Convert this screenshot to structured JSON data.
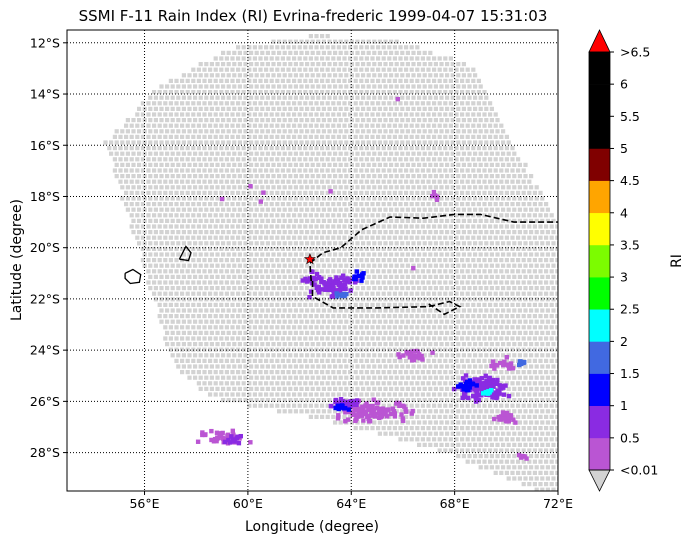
{
  "chart_data": {
    "type": "scatter",
    "subtype": "swath-map",
    "title": "SSMI F-11 Rain Index (RI) Evrina-frederic 1999-04-07 15:31:03",
    "xlabel": "Longitude (degree)",
    "ylabel": "Latitude (degree)",
    "xlim": [
      53,
      72
    ],
    "ylim": [
      -29.5,
      -11.5
    ],
    "x_ticks": [
      {
        "value": 56,
        "label": "56°E"
      },
      {
        "value": 60,
        "label": "60°E"
      },
      {
        "value": 64,
        "label": "64°E"
      },
      {
        "value": 68,
        "label": "68°E"
      },
      {
        "value": 72,
        "label": "72°E"
      }
    ],
    "y_ticks": [
      {
        "value": -12,
        "label": "12°S"
      },
      {
        "value": -14,
        "label": "14°S"
      },
      {
        "value": -16,
        "label": "16°S"
      },
      {
        "value": -18,
        "label": "18°S"
      },
      {
        "value": -20,
        "label": "20°S"
      },
      {
        "value": -22,
        "label": "22°S"
      },
      {
        "value": -24,
        "label": "24°S"
      },
      {
        "value": -26,
        "label": "26°S"
      },
      {
        "value": -28,
        "label": "28°S"
      }
    ],
    "grid": "dotted",
    "swath_polygon_lonlat": [
      [
        54.4,
        -15.8
      ],
      [
        56.5,
        -13.6
      ],
      [
        59.3,
        -12.1
      ],
      [
        62.5,
        -11.6
      ],
      [
        66,
        -11.9
      ],
      [
        68.6,
        -12.8
      ],
      [
        71.1,
        -17.5
      ],
      [
        72,
        -19.2
      ],
      [
        72,
        -29.5
      ],
      [
        71.2,
        -29.5
      ],
      [
        67.5,
        -27.9
      ],
      [
        63.1,
        -26.7
      ],
      [
        58.5,
        -25.8
      ],
      [
        57,
        -24.5
      ]
    ],
    "coastlines": [
      [
        [
          55.25,
          -21.0
        ],
        [
          55.55,
          -20.85
        ],
        [
          55.85,
          -21.05
        ],
        [
          55.8,
          -21.35
        ],
        [
          55.45,
          -21.4
        ],
        [
          55.25,
          -21.2
        ],
        [
          55.25,
          -21.0
        ]
      ],
      [
        [
          57.35,
          -20.45
        ],
        [
          57.6,
          -19.95
        ],
        [
          57.8,
          -20.2
        ],
        [
          57.7,
          -20.5
        ],
        [
          57.35,
          -20.45
        ]
      ]
    ],
    "storm_track": [
      [
        62.45,
        -21.3
      ],
      [
        62.4,
        -20.6
      ],
      [
        62.9,
        -20.2
      ],
      [
        63.6,
        -20.0
      ],
      [
        64.4,
        -19.3
      ],
      [
        65.5,
        -18.8
      ],
      [
        66.8,
        -18.85
      ],
      [
        68.0,
        -18.7
      ],
      [
        69.0,
        -18.7
      ],
      [
        70.3,
        -19.0
      ],
      [
        72,
        -19.0
      ]
    ],
    "storm_track_lower": [
      [
        62.5,
        -21.3
      ],
      [
        62.5,
        -21.9
      ],
      [
        63.3,
        -22.35
      ],
      [
        65.0,
        -22.35
      ],
      [
        67.0,
        -22.3
      ],
      [
        67.8,
        -22.1
      ],
      [
        68.2,
        -22.3
      ],
      [
        67.6,
        -22.6
      ],
      [
        67.0,
        -22.2
      ]
    ],
    "storm_center": {
      "lon": 62.4,
      "lat": -20.45
    },
    "colorbar": {
      "label": "RI",
      "min_label": "<0.01",
      "max_label": ">6.5",
      "boundaries": [
        "0.5",
        "1",
        "1.5",
        "2",
        "2.5",
        "3",
        "3.5",
        "4",
        "4.5",
        "5",
        "5.5",
        "6"
      ],
      "colors": [
        "#ba55d3",
        "#8a2be2",
        "#0000ff",
        "#4169e1",
        "#00ffff",
        "#00ff00",
        "#7cfc00",
        "#ffff00",
        "#ffa500",
        "#800000",
        "#000000",
        "#000000",
        "#000000"
      ],
      "over_color": "#ff0000",
      "under_color": "#d3d3d3"
    },
    "rain_clusters": [
      {
        "lon": 63.3,
        "lat": -21.5,
        "level": 1,
        "count": 70,
        "slon": 1.1,
        "slat": 0.5
      },
      {
        "lon": 63.6,
        "lat": -21.85,
        "level": 3,
        "count": 14,
        "slon": 0.35,
        "slat": 0.12
      },
      {
        "lon": 64.3,
        "lat": -21.1,
        "level": 2,
        "count": 10,
        "slon": 0.35,
        "slat": 0.45
      },
      {
        "lon": 62.5,
        "lat": -21.2,
        "level": 1,
        "count": 15,
        "slon": 0.5,
        "slat": 0.4
      },
      {
        "lon": 69.1,
        "lat": -25.5,
        "level": 1,
        "count": 120,
        "slon": 1.3,
        "slat": 0.65
      },
      {
        "lon": 68.5,
        "lat": -25.4,
        "level": 2,
        "count": 18,
        "slon": 0.45,
        "slat": 0.25
      },
      {
        "lon": 69.3,
        "lat": -25.65,
        "level": 4,
        "count": 12,
        "slon": 0.35,
        "slat": 0.12
      },
      {
        "lon": 70.6,
        "lat": -24.5,
        "level": 3,
        "count": 8,
        "slon": 0.2,
        "slat": 0.25
      },
      {
        "lon": 69.8,
        "lat": -24.6,
        "level": 0,
        "count": 18,
        "slon": 0.8,
        "slat": 0.4
      },
      {
        "lon": 64.8,
        "lat": -26.4,
        "level": 0,
        "count": 110,
        "slon": 2.0,
        "slat": 0.55
      },
      {
        "lon": 63.8,
        "lat": -26.1,
        "level": 1,
        "count": 35,
        "slon": 0.8,
        "slat": 0.3
      },
      {
        "lon": 63.6,
        "lat": -26.25,
        "level": 2,
        "count": 10,
        "slon": 0.45,
        "slat": 0.15
      },
      {
        "lon": 59.0,
        "lat": -27.4,
        "level": 0,
        "count": 40,
        "slon": 1.2,
        "slat": 0.45
      },
      {
        "lon": 59.5,
        "lat": -27.5,
        "level": 1,
        "count": 12,
        "slon": 0.5,
        "slat": 0.2
      },
      {
        "lon": 66.5,
        "lat": -24.2,
        "level": 0,
        "count": 25,
        "slon": 1.0,
        "slat": 0.35
      },
      {
        "lon": 67.2,
        "lat": -18.0,
        "level": 0,
        "count": 6,
        "slon": 0.3,
        "slat": 0.3
      },
      {
        "lon": 70.0,
        "lat": -26.6,
        "level": 0,
        "count": 20,
        "slon": 0.6,
        "slat": 0.3
      },
      {
        "lon": 70.6,
        "lat": -28.2,
        "level": 0,
        "count": 6,
        "slon": 0.3,
        "slat": 0.2
      }
    ],
    "rain_points": [
      {
        "lon": 60.1,
        "lat": -17.6,
        "level": 0
      },
      {
        "lon": 60.5,
        "lat": -18.2,
        "level": 0
      },
      {
        "lon": 60.6,
        "lat": -17.85,
        "level": 0
      },
      {
        "lon": 59.0,
        "lat": -18.1,
        "level": 0
      },
      {
        "lon": 63.2,
        "lat": -17.8,
        "level": 0
      },
      {
        "lon": 65.8,
        "lat": -14.2,
        "level": 0
      },
      {
        "lon": 66.4,
        "lat": -20.8,
        "level": 0
      }
    ]
  }
}
